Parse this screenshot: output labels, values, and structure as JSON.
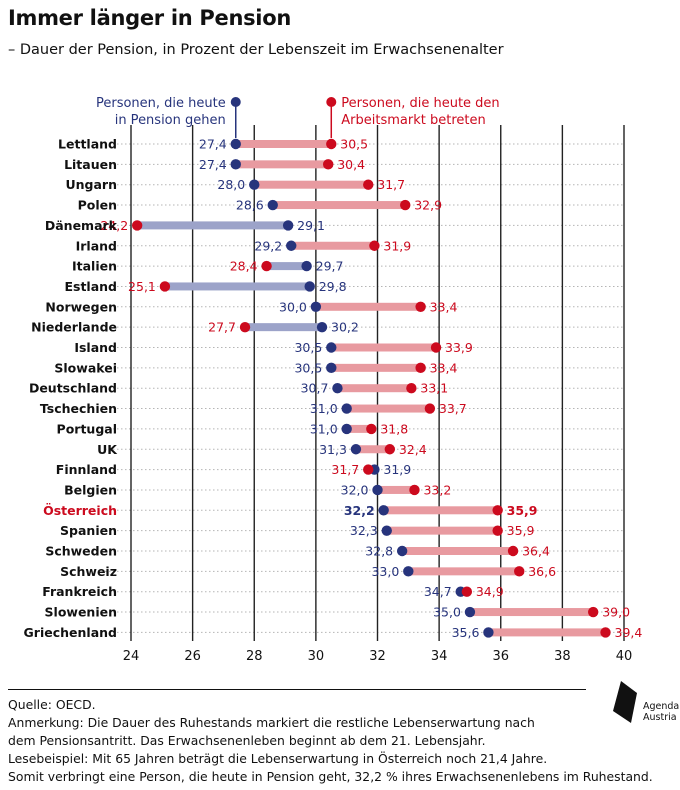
{
  "title": "Immer länger in Pension",
  "subtitle": "– Dauer der Pension, in Prozent der Lebenszeit im Erwachsenenalter",
  "colors": {
    "blue": "#27347c",
    "red": "#cc0a1e",
    "bar_red": "#e89aa0",
    "bar_blue": "#9ca3c9",
    "grid": "#9a9a9a",
    "axis": "#111111"
  },
  "chart_data": {
    "type": "dumbbell",
    "title": "Immer länger in Pension",
    "subtitle": "– Dauer der Pension, in Prozent der Lebenszeit im Erwachsenenalter",
    "xlim": [
      24,
      40
    ],
    "xticks": [
      "24",
      "26",
      "28",
      "30",
      "32",
      "34",
      "36",
      "38",
      "40"
    ],
    "legend": {
      "current": "Personen, die heute\nin Pension gehen",
      "future": "Personen, die heute den\nArbeitsmarkt betreten"
    },
    "highlight": "Österreich",
    "categories": [
      "Lettland",
      "Litauen",
      "Ungarn",
      "Polen",
      "Dänemark",
      "Irland",
      "Italien",
      "Estland",
      "Norwegen",
      "Niederlande",
      "Island",
      "Slowakei",
      "Deutschland",
      "Tschechien",
      "Portugal",
      "UK",
      "Finnland",
      "Belgien",
      "Österreich",
      "Spanien",
      "Schweden",
      "Schweiz",
      "Frankreich",
      "Slowenien",
      "Griechenland"
    ],
    "series": [
      {
        "name": "Personen, die heute in Pension gehen",
        "values": [
          27.4,
          27.4,
          28.0,
          28.6,
          29.1,
          29.2,
          29.7,
          29.8,
          30.0,
          30.2,
          30.5,
          30.5,
          30.7,
          31.0,
          31.0,
          31.3,
          31.9,
          32.0,
          32.2,
          32.3,
          32.8,
          33.0,
          34.7,
          35.0,
          35.6
        ],
        "labels": [
          "27,4",
          "27,4",
          "28,0",
          "28,6",
          "29,1",
          "29,2",
          "29,7",
          "29,8",
          "30,0",
          "30,2",
          "30,5",
          "30,5",
          "30,7",
          "31,0",
          "31,0",
          "31,3",
          "31,9",
          "32,0",
          "32,2",
          "32,3",
          "32,8",
          "33,0",
          "34,7",
          "35,0",
          "35,6"
        ]
      },
      {
        "name": "Personen, die heute den Arbeitsmarkt betreten",
        "values": [
          30.5,
          30.4,
          31.7,
          32.9,
          24.2,
          31.9,
          28.4,
          25.1,
          33.4,
          27.7,
          33.9,
          33.4,
          33.1,
          33.7,
          31.8,
          32.4,
          31.7,
          33.2,
          35.9,
          35.9,
          36.4,
          36.6,
          34.9,
          39.0,
          39.4
        ],
        "labels": [
          "30,5",
          "30,4",
          "31,7",
          "32,9",
          "24,2",
          "31,9",
          "28,4",
          "25,1",
          "33,4",
          "27,7",
          "33,9",
          "33,4",
          "33,1",
          "33,7",
          "31,8",
          "32,4",
          "31,7",
          "33,2",
          "35,9",
          "35,9",
          "36,4",
          "36,6",
          "34,9",
          "39,0",
          "39,4"
        ]
      }
    ]
  },
  "footer": {
    "source": "Quelle: OECD.",
    "note1": "Anmerkung: Die Dauer des Ruhestands markiert die restliche Lebenserwartung nach",
    "note2": "dem Pensionsantritt. Das Erwachsenenleben beginnt ab dem 21. Lebensjahr.",
    "note3": "Lesebeispiel: Mit 65 Jahren beträgt die Lebenserwartung in Österreich noch 21,4 Jahre.",
    "note4": "Somit verbringt eine Person, die heute in Pension geht, 32,2 % ihres Erwachsenenlebens im Ruhestand."
  },
  "logo": {
    "line1": "Agenda",
    "line2": "Austria"
  }
}
